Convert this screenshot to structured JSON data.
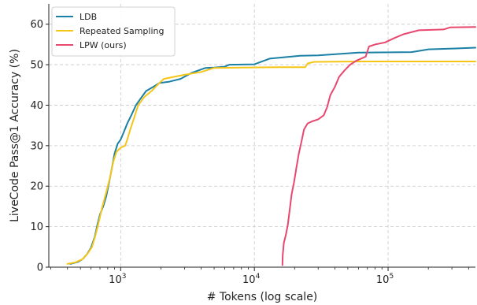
{
  "chart_data": {
    "type": "line",
    "xlabel": "# Tokens (log scale)",
    "ylabel": "LiveCode Pass@1 Accuracy (%)",
    "xscale": "log",
    "xlim": [
      290,
      450000
    ],
    "ylim": [
      0,
      65
    ],
    "yticks": [
      0,
      10,
      20,
      30,
      40,
      50,
      60
    ],
    "xticks": [
      {
        "value": 1000,
        "base": "10",
        "exp": "3"
      },
      {
        "value": 10000,
        "base": "10",
        "exp": "4"
      },
      {
        "value": 100000,
        "base": "10",
        "exp": "5"
      }
    ],
    "grid": true,
    "legend_position": "top-left",
    "series": [
      {
        "name": "LDB",
        "color": "#1a80a6",
        "points": [
          [
            420,
            0.8
          ],
          [
            480,
            1.3
          ],
          [
            520,
            2.0
          ],
          [
            560,
            3.2
          ],
          [
            600,
            4.8
          ],
          [
            640,
            7.5
          ],
          [
            670,
            10.5
          ],
          [
            700,
            13.0
          ],
          [
            740,
            15.0
          ],
          [
            780,
            17.5
          ],
          [
            820,
            21.0
          ],
          [
            860,
            24.5
          ],
          [
            900,
            28.0
          ],
          [
            950,
            30.5
          ],
          [
            1000,
            31.5
          ],
          [
            1060,
            33.5
          ],
          [
            1120,
            35.5
          ],
          [
            1200,
            37.5
          ],
          [
            1300,
            40.0
          ],
          [
            1400,
            41.5
          ],
          [
            1550,
            43.5
          ],
          [
            1750,
            44.5
          ],
          [
            1950,
            45.5
          ],
          [
            2300,
            45.8
          ],
          [
            2800,
            46.5
          ],
          [
            3400,
            48.0
          ],
          [
            4300,
            49.2
          ],
          [
            5000,
            49.3
          ],
          [
            6000,
            49.5
          ],
          [
            6500,
            50.0
          ],
          [
            10000,
            50.1
          ],
          [
            13000,
            51.5
          ],
          [
            22000,
            52.2
          ],
          [
            30000,
            52.3
          ],
          [
            60000,
            53.0
          ],
          [
            150000,
            53.1
          ],
          [
            200000,
            53.8
          ],
          [
            320000,
            54.0
          ],
          [
            450000,
            54.2
          ]
        ]
      },
      {
        "name": "Repeated Sampling",
        "color": "#f5c518",
        "points": [
          [
            400,
            0.8
          ],
          [
            460,
            1.2
          ],
          [
            520,
            2.0
          ],
          [
            570,
            3.5
          ],
          [
            610,
            5.0
          ],
          [
            650,
            8.0
          ],
          [
            690,
            11.5
          ],
          [
            730,
            15.0
          ],
          [
            780,
            18.5
          ],
          [
            830,
            22.0
          ],
          [
            880,
            26.0
          ],
          [
            930,
            28.5
          ],
          [
            1000,
            29.5
          ],
          [
            1080,
            30.0
          ],
          [
            1120,
            31.5
          ],
          [
            1180,
            34.0
          ],
          [
            1250,
            36.5
          ],
          [
            1350,
            40.0
          ],
          [
            1500,
            42.0
          ],
          [
            1700,
            43.5
          ],
          [
            1950,
            45.5
          ],
          [
            2100,
            46.5
          ],
          [
            2500,
            47.0
          ],
          [
            3000,
            47.5
          ],
          [
            4000,
            48.2
          ],
          [
            5000,
            49.2
          ],
          [
            8000,
            49.3
          ],
          [
            15000,
            49.4
          ],
          [
            24000,
            49.4
          ],
          [
            25000,
            50.3
          ],
          [
            28000,
            50.7
          ],
          [
            60000,
            50.8
          ],
          [
            450000,
            50.8
          ]
        ]
      },
      {
        "name": "LPW (ours)",
        "color": "#e8476e",
        "points": [
          [
            16200,
            0.5
          ],
          [
            16300,
            3.0
          ],
          [
            16600,
            6.0
          ],
          [
            17200,
            8.0
          ],
          [
            17800,
            10.5
          ],
          [
            18500,
            15.0
          ],
          [
            19000,
            18.0
          ],
          [
            19800,
            21.0
          ],
          [
            20600,
            24.5
          ],
          [
            21500,
            28.0
          ],
          [
            22500,
            31.0
          ],
          [
            23500,
            34.0
          ],
          [
            25000,
            35.5
          ],
          [
            27000,
            36.0
          ],
          [
            30000,
            36.5
          ],
          [
            33000,
            37.5
          ],
          [
            35000,
            39.5
          ],
          [
            37000,
            42.5
          ],
          [
            40000,
            44.5
          ],
          [
            43000,
            47.0
          ],
          [
            47000,
            48.5
          ],
          [
            52000,
            50.0
          ],
          [
            58000,
            51.0
          ],
          [
            68000,
            52.0
          ],
          [
            72000,
            54.5
          ],
          [
            80000,
            55.0
          ],
          [
            95000,
            55.5
          ],
          [
            110000,
            56.5
          ],
          [
            130000,
            57.5
          ],
          [
            170000,
            58.5
          ],
          [
            260000,
            58.7
          ],
          [
            290000,
            59.2
          ],
          [
            450000,
            59.3
          ]
        ]
      }
    ]
  }
}
